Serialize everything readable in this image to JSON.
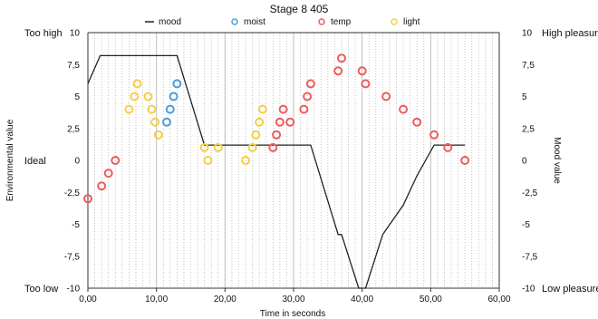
{
  "chart_data": {
    "type": "line",
    "title": "Stage 8 405",
    "xlabel": "Time in seconds",
    "ylabel_left": "Environmental value",
    "ylabel_right": "Mood value",
    "xlim": [
      0,
      60
    ],
    "ylim": [
      -10,
      10
    ],
    "x_ticks": [
      "0,00",
      "10,00",
      "20,00",
      "30,00",
      "40,00",
      "50,00",
      "60,00"
    ],
    "y_ticks": [
      "-10",
      "-7,5",
      "-5",
      "-2,5",
      "0",
      "2,5",
      "5",
      "7,5",
      "10"
    ],
    "left_labels": [
      {
        "y": 10,
        "text": "Too high"
      },
      {
        "y": 0,
        "text": "Ideal"
      },
      {
        "y": -10,
        "text": "Too low"
      }
    ],
    "right_labels": [
      {
        "y": 10,
        "text": "High pleasure"
      },
      {
        "y": -10,
        "text": "Low pleasure"
      }
    ],
    "legend": [
      {
        "name": "mood",
        "marker": "line",
        "color": "#222222"
      },
      {
        "name": "moist",
        "marker": "circle",
        "color": "#4a9fd8"
      },
      {
        "name": "temp",
        "marker": "circle",
        "color": "#ef5b5b"
      },
      {
        "name": "light",
        "marker": "circle",
        "color": "#f4cf45"
      }
    ],
    "series": [
      {
        "name": "mood",
        "kind": "line",
        "color": "#222222",
        "points": [
          [
            0,
            6
          ],
          [
            1.8,
            8.2
          ],
          [
            13,
            8.2
          ],
          [
            17,
            1.2
          ],
          [
            32.5,
            1.2
          ],
          [
            36.5,
            -5.8
          ],
          [
            37,
            -5.8
          ],
          [
            39.5,
            -10
          ],
          [
            40.5,
            -10
          ],
          [
            43,
            -5.8
          ],
          [
            46,
            -3.5
          ],
          [
            48,
            -1.2
          ],
          [
            50.5,
            1.2
          ],
          [
            55,
            1.2
          ]
        ]
      },
      {
        "name": "moist",
        "kind": "scatter",
        "color": "#4a9fd8",
        "points": [
          [
            11.5,
            3
          ],
          [
            12,
            4
          ],
          [
            12.5,
            5
          ],
          [
            13,
            6
          ]
        ]
      },
      {
        "name": "temp",
        "kind": "scatter",
        "color": "#ef5b5b",
        "points": [
          [
            0,
            -3
          ],
          [
            2,
            -2
          ],
          [
            3,
            -1
          ],
          [
            4,
            0
          ],
          [
            27,
            1
          ],
          [
            27.5,
            2
          ],
          [
            28,
            3
          ],
          [
            28.5,
            4
          ],
          [
            29.5,
            3
          ],
          [
            31.5,
            4
          ],
          [
            32,
            5
          ],
          [
            32.5,
            6
          ],
          [
            36.5,
            7
          ],
          [
            37,
            8
          ],
          [
            40,
            7
          ],
          [
            40.5,
            6
          ],
          [
            43.5,
            5
          ],
          [
            46,
            4
          ],
          [
            48,
            3
          ],
          [
            50.5,
            2
          ],
          [
            52.5,
            1
          ],
          [
            55,
            0
          ]
        ]
      },
      {
        "name": "light",
        "kind": "scatter",
        "color": "#f4cf45",
        "points": [
          [
            6,
            4
          ],
          [
            6.8,
            5
          ],
          [
            7.2,
            6
          ],
          [
            8.8,
            5
          ],
          [
            9.3,
            4
          ],
          [
            9.8,
            3
          ],
          [
            10.3,
            2
          ],
          [
            17,
            1
          ],
          [
            17.5,
            0
          ],
          [
            19,
            1
          ],
          [
            23,
            0
          ],
          [
            24,
            1
          ],
          [
            24.5,
            2
          ],
          [
            25,
            3
          ],
          [
            25.5,
            4
          ]
        ]
      }
    ],
    "grid": {
      "vertical_dotted": true,
      "horizontal": false
    }
  }
}
